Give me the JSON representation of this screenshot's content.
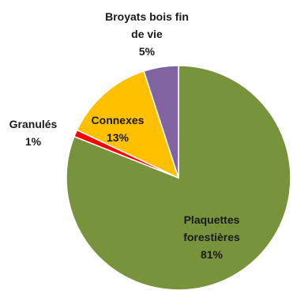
{
  "chart_data": {
    "type": "pie",
    "title": "",
    "start": "top",
    "direction": "clockwise",
    "slices": [
      {
        "name": "Plaquettes forestières",
        "value": 81,
        "label_lines": [
          "Plaquettes",
          "forestières",
          "81%"
        ],
        "color": "#77933c"
      },
      {
        "name": "Granulés",
        "value": 1,
        "label_lines": [
          "Granulés",
          "1%"
        ],
        "color": "#ff0000"
      },
      {
        "name": "Connexes",
        "value": 13,
        "label_lines": [
          "Connexes",
          "13%"
        ],
        "color": "#ffc000"
      },
      {
        "name": "Broyats bois fin de vie",
        "value": 5,
        "label_lines": [
          "Broyats bois fin",
          "de vie",
          "5%"
        ],
        "color": "#8064a2"
      }
    ],
    "border_color": "#ffffff"
  }
}
